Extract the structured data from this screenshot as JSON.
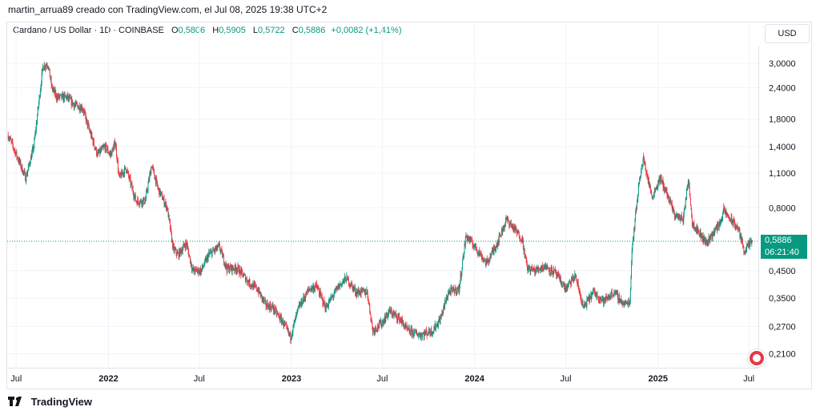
{
  "header": {
    "snapshot_text": "martin_arrua89 creado con TradingView.com, el Jul 08, 2025 19:38 UTC+2"
  },
  "symbol": {
    "name": "Cardano / US Dollar · 1D · COINBASE",
    "open_label": "O",
    "open": "0,5806",
    "high_label": "H",
    "high": "0,5905",
    "low_label": "L",
    "low": "0,5722",
    "close_label": "C",
    "close": "0,5886",
    "change": "+0,0082 (+1,41%)"
  },
  "currency_button": "USD",
  "price_tag": {
    "price": "0,5886",
    "countdown": "06:21:40"
  },
  "footer": {
    "brand": "TradingView"
  },
  "colors": {
    "up": "#089981",
    "down": "#f23645",
    "grid": "#f0f3fa",
    "axis_text": "#131722"
  },
  "chart_data": {
    "type": "candlestick",
    "y_scale": "log",
    "y_ticks": [
      {
        "value": 3.0,
        "label": "3,0000"
      },
      {
        "value": 2.4,
        "label": "2,4000"
      },
      {
        "value": 1.8,
        "label": "1,8000"
      },
      {
        "value": 1.4,
        "label": "1,4000"
      },
      {
        "value": 1.1,
        "label": "1,1000"
      },
      {
        "value": 0.8,
        "label": "0,8000"
      },
      {
        "value": 0.45,
        "label": "0,4500"
      },
      {
        "value": 0.35,
        "label": "0,3500"
      },
      {
        "value": 0.27,
        "label": "0,2700"
      },
      {
        "value": 0.21,
        "label": "0,2100"
      }
    ],
    "x_ticks": [
      {
        "date": "2021-07-01",
        "label": "Jul",
        "bold": false
      },
      {
        "date": "2022-01-01",
        "label": "2022",
        "bold": true
      },
      {
        "date": "2022-07-01",
        "label": "Jul",
        "bold": false
      },
      {
        "date": "2023-01-01",
        "label": "2023",
        "bold": true
      },
      {
        "date": "2023-07-01",
        "label": "Jul",
        "bold": false
      },
      {
        "date": "2024-01-01",
        "label": "2024",
        "bold": true
      },
      {
        "date": "2024-07-01",
        "label": "Jul",
        "bold": false
      },
      {
        "date": "2025-01-01",
        "label": "2025",
        "bold": true
      },
      {
        "date": "2025-07-01",
        "label": "Jul",
        "bold": false
      }
    ],
    "x_range": [
      "2021-06-13",
      "2025-07-20"
    ],
    "y_range": [
      0.185,
      3.5
    ],
    "last_price": 0.5886,
    "path": [
      [
        "2021-06-15",
        1.55
      ],
      [
        "2021-06-28",
        1.35
      ],
      [
        "2021-07-20",
        1.05
      ],
      [
        "2021-08-05",
        1.4
      ],
      [
        "2021-08-15",
        2.1
      ],
      [
        "2021-08-23",
        2.9
      ],
      [
        "2021-09-02",
        3.0
      ],
      [
        "2021-09-10",
        2.4
      ],
      [
        "2021-09-20",
        2.2
      ],
      [
        "2021-10-10",
        2.2
      ],
      [
        "2021-10-25",
        2.05
      ],
      [
        "2021-11-10",
        2.0
      ],
      [
        "2021-11-25",
        1.6
      ],
      [
        "2021-12-10",
        1.3
      ],
      [
        "2021-12-25",
        1.4
      ],
      [
        "2022-01-05",
        1.3
      ],
      [
        "2022-01-15",
        1.45
      ],
      [
        "2022-01-22",
        1.05
      ],
      [
        "2022-02-05",
        1.15
      ],
      [
        "2022-02-25",
        0.85
      ],
      [
        "2022-03-15",
        0.85
      ],
      [
        "2022-03-28",
        1.18
      ],
      [
        "2022-04-10",
        0.95
      ],
      [
        "2022-04-28",
        0.8
      ],
      [
        "2022-05-10",
        0.55
      ],
      [
        "2022-05-20",
        0.52
      ],
      [
        "2022-06-05",
        0.58
      ],
      [
        "2022-06-18",
        0.45
      ],
      [
        "2022-07-05",
        0.45
      ],
      [
        "2022-07-20",
        0.52
      ],
      [
        "2022-08-10",
        0.56
      ],
      [
        "2022-08-25",
        0.46
      ],
      [
        "2022-09-15",
        0.46
      ],
      [
        "2022-10-10",
        0.4
      ],
      [
        "2022-10-25",
        0.38
      ],
      [
        "2022-11-10",
        0.33
      ],
      [
        "2022-11-25",
        0.32
      ],
      [
        "2022-12-15",
        0.28
      ],
      [
        "2022-12-30",
        0.245
      ],
      [
        "2023-01-15",
        0.32
      ],
      [
        "2023-02-05",
        0.38
      ],
      [
        "2023-02-20",
        0.39
      ],
      [
        "2023-03-10",
        0.32
      ],
      [
        "2023-04-05",
        0.39
      ],
      [
        "2023-04-20",
        0.42
      ],
      [
        "2023-05-10",
        0.37
      ],
      [
        "2023-06-01",
        0.37
      ],
      [
        "2023-06-12",
        0.26
      ],
      [
        "2023-07-01",
        0.28
      ],
      [
        "2023-07-15",
        0.31
      ],
      [
        "2023-08-05",
        0.29
      ],
      [
        "2023-08-20",
        0.26
      ],
      [
        "2023-09-15",
        0.25
      ],
      [
        "2023-10-10",
        0.26
      ],
      [
        "2023-10-25",
        0.29
      ],
      [
        "2023-11-10",
        0.37
      ],
      [
        "2023-12-01",
        0.38
      ],
      [
        "2023-12-15",
        0.62
      ],
      [
        "2024-01-05",
        0.55
      ],
      [
        "2024-01-25",
        0.48
      ],
      [
        "2024-02-15",
        0.58
      ],
      [
        "2024-03-05",
        0.72
      ],
      [
        "2024-03-15",
        0.68
      ],
      [
        "2024-04-05",
        0.6
      ],
      [
        "2024-04-15",
        0.46
      ],
      [
        "2024-05-01",
        0.45
      ],
      [
        "2024-05-20",
        0.47
      ],
      [
        "2024-06-10",
        0.44
      ],
      [
        "2024-07-01",
        0.38
      ],
      [
        "2024-07-20",
        0.43
      ],
      [
        "2024-08-05",
        0.32
      ],
      [
        "2024-08-25",
        0.37
      ],
      [
        "2024-09-15",
        0.34
      ],
      [
        "2024-10-05",
        0.37
      ],
      [
        "2024-10-25",
        0.33
      ],
      [
        "2024-11-06",
        0.34
      ],
      [
        "2024-11-10",
        0.55
      ],
      [
        "2024-11-25",
        1.05
      ],
      [
        "2024-12-03",
        1.25
      ],
      [
        "2024-12-20",
        0.88
      ],
      [
        "2025-01-05",
        1.05
      ],
      [
        "2025-01-15",
        0.95
      ],
      [
        "2025-02-03",
        0.75
      ],
      [
        "2025-02-20",
        0.72
      ],
      [
        "2025-03-03",
        1.05
      ],
      [
        "2025-03-10",
        0.7
      ],
      [
        "2025-04-07",
        0.58
      ],
      [
        "2025-04-20",
        0.63
      ],
      [
        "2025-05-05",
        0.7
      ],
      [
        "2025-05-12",
        0.78
      ],
      [
        "2025-05-25",
        0.72
      ],
      [
        "2025-06-10",
        0.66
      ],
      [
        "2025-06-22",
        0.54
      ],
      [
        "2025-07-08",
        0.5886
      ]
    ]
  }
}
